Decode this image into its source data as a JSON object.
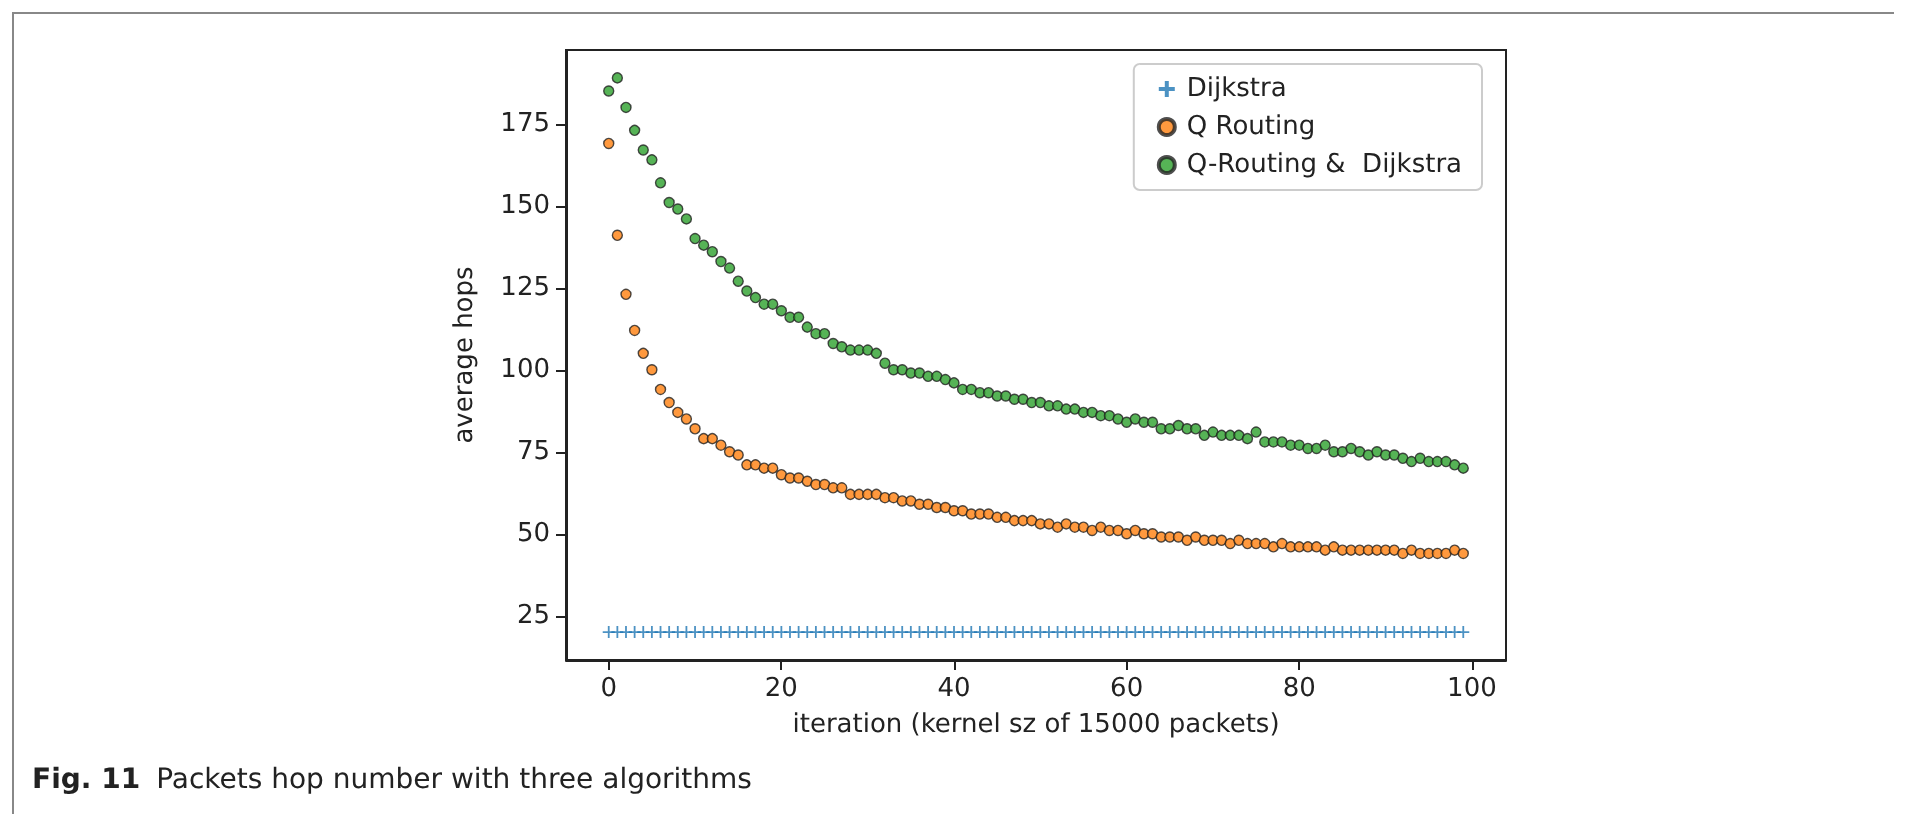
{
  "chart_data": {
    "type": "scatter",
    "xlabel": "iteration (kernel sz of 15000 packets)",
    "ylabel": "average hops",
    "annotations": [
      "Fig. 11",
      "Packets hop number with three algorithms"
    ],
    "x": [
      0,
      1,
      2,
      3,
      4,
      5,
      6,
      7,
      8,
      9,
      10,
      11,
      12,
      13,
      14,
      15,
      16,
      17,
      18,
      19,
      20,
      21,
      22,
      23,
      24,
      25,
      26,
      27,
      28,
      29,
      30,
      31,
      32,
      33,
      34,
      35,
      36,
      37,
      38,
      39,
      40,
      41,
      42,
      43,
      44,
      45,
      46,
      47,
      48,
      49,
      50,
      51,
      52,
      53,
      54,
      55,
      56,
      57,
      58,
      59,
      60,
      61,
      62,
      63,
      64,
      65,
      66,
      67,
      68,
      69,
      70,
      71,
      72,
      73,
      74,
      75,
      76,
      77,
      78,
      79,
      80,
      81,
      82,
      83,
      84,
      85,
      86,
      87,
      88,
      89,
      90,
      91,
      92,
      93,
      94,
      95,
      96,
      97,
      98,
      99
    ],
    "series": [
      {
        "name": "Dijkstra",
        "color": "#1f77b4",
        "marker": "cross",
        "values": [
          20,
          20,
          20,
          20,
          20,
          20,
          20,
          20,
          20,
          20,
          20,
          20,
          20,
          20,
          20,
          20,
          20,
          20,
          20,
          20,
          20,
          20,
          20,
          20,
          20,
          20,
          20,
          20,
          20,
          20,
          20,
          20,
          20,
          20,
          20,
          20,
          20,
          20,
          20,
          20,
          20,
          20,
          20,
          20,
          20,
          20,
          20,
          20,
          20,
          20,
          20,
          20,
          20,
          20,
          20,
          20,
          20,
          20,
          20,
          20,
          20,
          20,
          20,
          20,
          20,
          20,
          20,
          20,
          20,
          20,
          20,
          20,
          20,
          20,
          20,
          20,
          20,
          20,
          20,
          20,
          20,
          20,
          20,
          20,
          20,
          20,
          20,
          20,
          20,
          20,
          20,
          20,
          20,
          20,
          20,
          20,
          20,
          20,
          20,
          20
        ]
      },
      {
        "name": "Q Routing",
        "color": "#ff7f0e",
        "marker": "circle",
        "values": [
          169,
          141,
          123,
          112,
          105,
          100,
          94,
          90,
          87,
          85,
          82,
          79,
          79,
          77,
          75,
          74,
          71,
          71,
          70,
          70,
          68,
          67,
          67,
          66,
          65,
          65,
          64,
          64,
          62,
          62,
          62,
          62,
          61,
          61,
          60,
          60,
          59,
          59,
          58,
          58,
          57,
          57,
          56,
          56,
          56,
          55,
          55,
          54,
          54,
          54,
          53,
          53,
          52,
          53,
          52,
          52,
          51,
          52,
          51,
          51,
          50,
          51,
          50,
          50,
          49,
          49,
          49,
          48,
          49,
          48,
          48,
          48,
          47,
          48,
          47,
          47,
          47,
          46,
          47,
          46,
          46,
          46,
          46,
          45,
          46,
          45,
          45,
          45,
          45,
          45,
          45,
          45,
          44,
          45,
          44,
          44,
          44,
          44,
          45,
          44
        ]
      },
      {
        "name": "Q-Routing &  Dijkstra",
        "color": "#2ca02c",
        "marker": "circle",
        "values": [
          185,
          189,
          180,
          173,
          167,
          164,
          157,
          151,
          149,
          146,
          140,
          138,
          136,
          133,
          131,
          127,
          124,
          122,
          120,
          120,
          118,
          116,
          116,
          113,
          111,
          111,
          108,
          107,
          106,
          106,
          106,
          105,
          102,
          100,
          100,
          99,
          99,
          98,
          98,
          97,
          96,
          94,
          94,
          93,
          93,
          92,
          92,
          91,
          91,
          90,
          90,
          89,
          89,
          88,
          88,
          87,
          87,
          86,
          86,
          85,
          84,
          85,
          84,
          84,
          82,
          82,
          83,
          82,
          82,
          80,
          81,
          80,
          80,
          80,
          79,
          81,
          78,
          78,
          78,
          77,
          77,
          76,
          76,
          77,
          75,
          75,
          76,
          75,
          74,
          75,
          74,
          74,
          73,
          72,
          73,
          72,
          72,
          72,
          71,
          70
        ]
      }
    ],
    "xlim": [
      -4.95,
      103.95
    ],
    "xticks": [
      0,
      20,
      40,
      60,
      80,
      100
    ],
    "ylim": [
      11.5,
      197.5
    ],
    "yticks": [
      25,
      50,
      75,
      100,
      125,
      150,
      175
    ],
    "legend": "top right",
    "grid": false
  }
}
